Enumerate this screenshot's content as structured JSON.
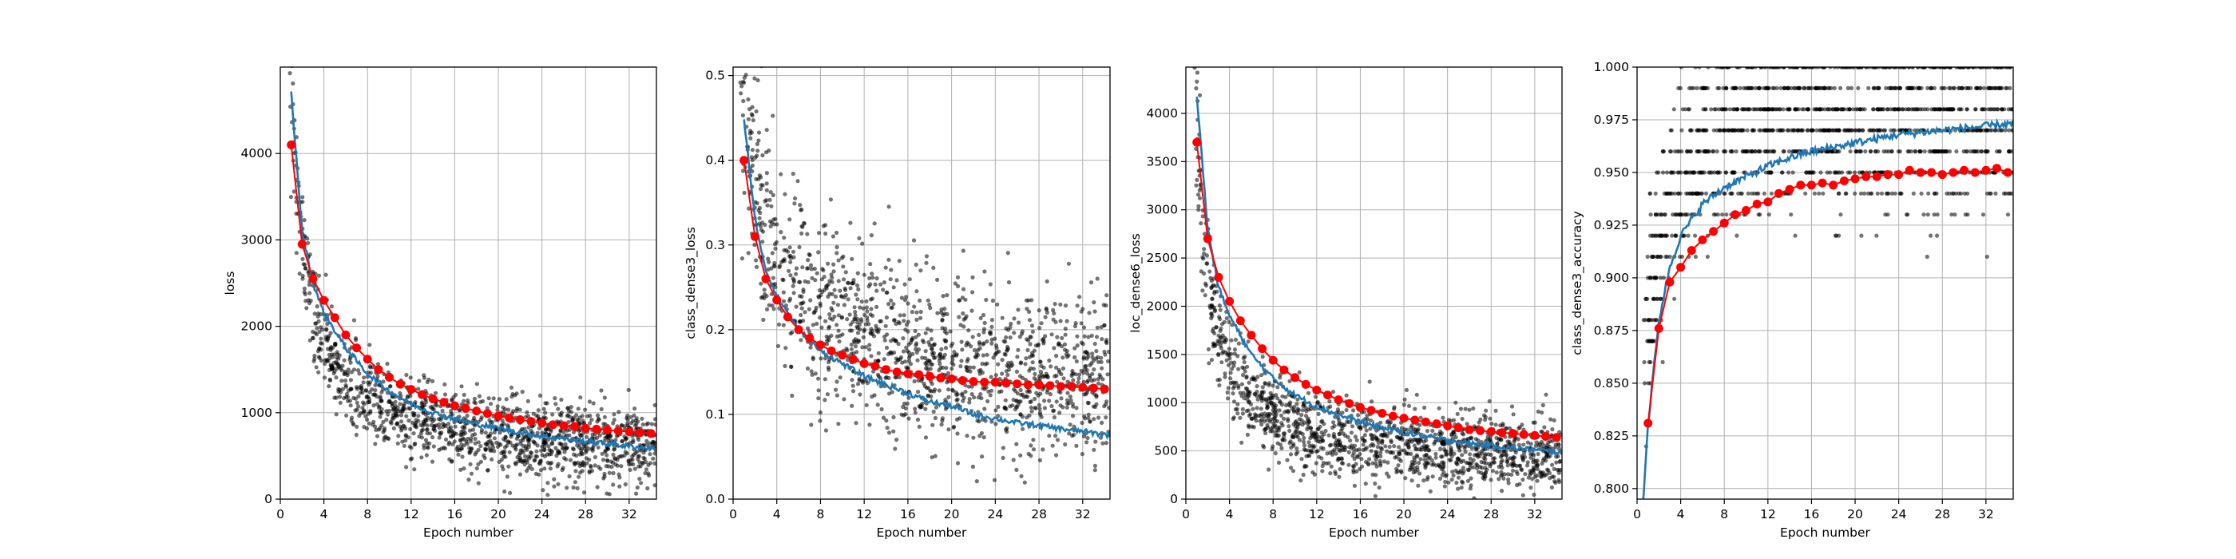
{
  "chart_data": [
    {
      "type": "scatter",
      "xlabel": "Epoch number",
      "ylabel": "loss",
      "xlim": [
        0,
        34.5
      ],
      "ylim": [
        0,
        5000
      ],
      "xticks": [
        "0",
        "4",
        "8",
        "12",
        "16",
        "20",
        "24",
        "28",
        "32"
      ],
      "yticks": [
        "0",
        "1000",
        "2000",
        "3000",
        "4000"
      ],
      "grid": true,
      "colors": {
        "scatter": "#000000",
        "train": "#1f77b4",
        "val": "#ff0000"
      },
      "model": {
        "a": 5800,
        "b": 450,
        "k": 1.0,
        "noise": 210
      },
      "series": [
        {
          "kind": "scatter-batches",
          "values_summary": "per-batch loss"
        },
        {
          "kind": "train-line",
          "x": [
            1,
            2,
            3,
            4,
            6,
            8,
            10,
            12,
            14,
            16,
            18,
            20,
            22,
            24,
            26,
            28,
            30,
            32,
            34
          ],
          "y": [
            4700,
            3100,
            2500,
            2150,
            1750,
            1450,
            1250,
            1100,
            1000,
            930,
            870,
            820,
            770,
            730,
            700,
            670,
            640,
            610,
            590
          ]
        },
        {
          "kind": "val-markers",
          "x": [
            1,
            2,
            3,
            4,
            5,
            6,
            7,
            8,
            9,
            10,
            11,
            12,
            13,
            14,
            15,
            16,
            17,
            18,
            19,
            20,
            21,
            22,
            23,
            24,
            25,
            26,
            27,
            28,
            29,
            30,
            31,
            32,
            33,
            34
          ],
          "y": [
            4100,
            2950,
            2550,
            2300,
            2100,
            1900,
            1750,
            1620,
            1500,
            1410,
            1330,
            1270,
            1210,
            1160,
            1120,
            1080,
            1050,
            1020,
            990,
            960,
            940,
            920,
            900,
            880,
            860,
            850,
            840,
            820,
            810,
            800,
            790,
            780,
            770,
            760
          ]
        }
      ]
    },
    {
      "type": "scatter",
      "xlabel": "Epoch number",
      "ylabel": "class_dense3_loss",
      "xlim": [
        0,
        34.5
      ],
      "ylim": [
        0,
        0.51
      ],
      "xticks": [
        "0",
        "4",
        "8",
        "12",
        "16",
        "20",
        "24",
        "28",
        "32"
      ],
      "yticks": [
        "0.0",
        "0.1",
        "0.2",
        "0.3",
        "0.4",
        "0.5"
      ],
      "grid": true,
      "colors": {
        "scatter": "#000000",
        "train": "#1f77b4",
        "val": "#ff0000"
      },
      "model": {
        "a": 0.5,
        "b": 0.065,
        "k": 0.55,
        "noise": 0.045
      },
      "series": [
        {
          "kind": "scatter-batches",
          "values_summary": "per-batch loss"
        },
        {
          "kind": "train-line",
          "x": [
            1,
            2,
            3,
            4,
            6,
            8,
            10,
            12,
            14,
            16,
            18,
            20,
            22,
            24,
            26,
            28,
            30,
            32,
            34
          ],
          "y": [
            0.45,
            0.33,
            0.27,
            0.24,
            0.2,
            0.175,
            0.16,
            0.145,
            0.135,
            0.125,
            0.115,
            0.11,
            0.1,
            0.095,
            0.09,
            0.087,
            0.083,
            0.08,
            0.076
          ]
        },
        {
          "kind": "val-markers",
          "x": [
            1,
            2,
            3,
            4,
            5,
            6,
            7,
            8,
            9,
            10,
            11,
            12,
            13,
            14,
            15,
            16,
            17,
            18,
            19,
            20,
            21,
            22,
            23,
            24,
            25,
            26,
            27,
            28,
            29,
            30,
            31,
            32,
            33,
            34
          ],
          "y": [
            0.4,
            0.31,
            0.26,
            0.235,
            0.215,
            0.2,
            0.19,
            0.182,
            0.175,
            0.17,
            0.165,
            0.16,
            0.157,
            0.153,
            0.15,
            0.148,
            0.147,
            0.145,
            0.143,
            0.142,
            0.14,
            0.139,
            0.138,
            0.138,
            0.137,
            0.136,
            0.135,
            0.135,
            0.134,
            0.133,
            0.133,
            0.132,
            0.131,
            0.13
          ]
        }
      ]
    },
    {
      "type": "scatter",
      "xlabel": "Epoch number",
      "ylabel": "loc_dense6_loss",
      "xlim": [
        0,
        34.5
      ],
      "ylim": [
        0,
        4480
      ],
      "xticks": [
        "0",
        "4",
        "8",
        "12",
        "16",
        "20",
        "24",
        "28",
        "32"
      ],
      "yticks": [
        "0",
        "500",
        "1000",
        "1500",
        "2000",
        "2500",
        "3000",
        "3500",
        "4000"
      ],
      "grid": true,
      "colors": {
        "scatter": "#000000",
        "train": "#1f77b4",
        "val": "#ff0000"
      },
      "model": {
        "a": 4700,
        "b": 320,
        "k": 1.0,
        "noise": 180
      },
      "series": [
        {
          "kind": "scatter-batches",
          "values_summary": "per-batch loss"
        },
        {
          "kind": "train-line",
          "x": [
            1,
            2,
            3,
            4,
            6,
            8,
            10,
            12,
            14,
            16,
            18,
            20,
            22,
            24,
            26,
            28,
            30,
            32,
            34
          ],
          "y": [
            4200,
            2800,
            2200,
            1900,
            1500,
            1250,
            1080,
            960,
            870,
            800,
            740,
            690,
            650,
            610,
            580,
            555,
            530,
            510,
            490
          ]
        },
        {
          "kind": "val-markers",
          "x": [
            1,
            2,
            3,
            4,
            5,
            6,
            7,
            8,
            9,
            10,
            11,
            12,
            13,
            14,
            15,
            16,
            17,
            18,
            19,
            20,
            21,
            22,
            23,
            24,
            25,
            26,
            27,
            28,
            29,
            30,
            31,
            32,
            33,
            34
          ],
          "y": [
            3700,
            2700,
            2300,
            2050,
            1850,
            1700,
            1560,
            1440,
            1340,
            1260,
            1190,
            1130,
            1080,
            1030,
            990,
            950,
            920,
            890,
            860,
            840,
            820,
            800,
            780,
            760,
            740,
            720,
            710,
            700,
            690,
            680,
            670,
            660,
            650,
            640
          ]
        }
      ]
    },
    {
      "type": "scatter",
      "xlabel": "Epoch number",
      "ylabel": "class_dense3_accuracy",
      "xlim": [
        0,
        34.5
      ],
      "ylim": [
        0.795,
        1.0
      ],
      "xticks": [
        "0",
        "4",
        "8",
        "12",
        "16",
        "20",
        "24",
        "28",
        "32"
      ],
      "yticks": [
        "0.800",
        "0.825",
        "0.850",
        "0.875",
        "0.900",
        "0.925",
        "0.950",
        "0.975",
        "1.000"
      ],
      "grid": true,
      "colors": {
        "scatter": "#000000",
        "train": "#1f77b4",
        "val": "#ff0000"
      },
      "model": {
        "a": 0.975,
        "b": 0.0,
        "k": 1.0,
        "noise": 0.03
      },
      "series": [
        {
          "kind": "scatter-batches",
          "values_summary": "per-batch accuracy, quantized to 0.01"
        },
        {
          "kind": "train-line",
          "x": [
            0.5,
            1,
            2,
            3,
            4,
            6,
            8,
            10,
            12,
            14,
            16,
            18,
            20,
            22,
            24,
            26,
            28,
            30,
            32,
            34
          ],
          "y": [
            0.79,
            0.83,
            0.88,
            0.905,
            0.92,
            0.935,
            0.943,
            0.948,
            0.953,
            0.957,
            0.96,
            0.962,
            0.964,
            0.966,
            0.968,
            0.969,
            0.97,
            0.971,
            0.972,
            0.973
          ]
        },
        {
          "kind": "val-markers",
          "x": [
            1,
            2,
            3,
            4,
            5,
            6,
            7,
            8,
            9,
            10,
            11,
            12,
            13,
            14,
            15,
            16,
            17,
            18,
            19,
            20,
            21,
            22,
            23,
            24,
            25,
            26,
            27,
            28,
            29,
            30,
            31,
            32,
            33,
            34
          ],
          "y": [
            0.831,
            0.876,
            0.898,
            0.905,
            0.913,
            0.918,
            0.922,
            0.926,
            0.93,
            0.932,
            0.935,
            0.936,
            0.94,
            0.942,
            0.944,
            0.944,
            0.945,
            0.944,
            0.946,
            0.947,
            0.948,
            0.948,
            0.949,
            0.949,
            0.951,
            0.95,
            0.95,
            0.949,
            0.95,
            0.951,
            0.95,
            0.951,
            0.952,
            0.95
          ]
        }
      ]
    }
  ]
}
